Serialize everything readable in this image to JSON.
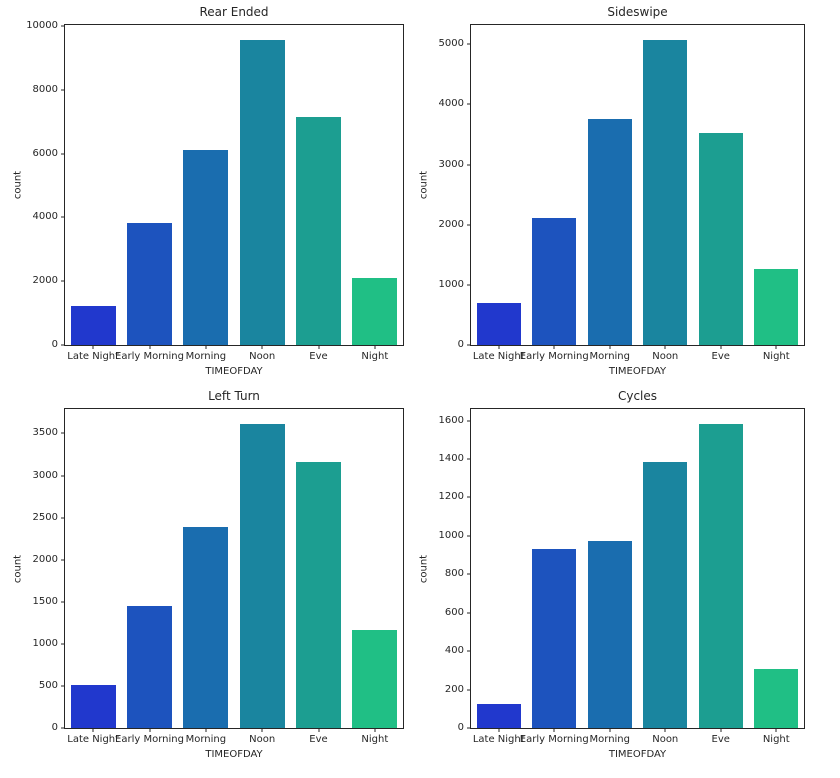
{
  "figure": {
    "background": "#ffffff",
    "spine_color": "#262626",
    "text_color": "#262626"
  },
  "palette": [
    "#2138cd",
    "#1d53be",
    "#1a6daf",
    "#1a859f",
    "#1c9e91",
    "#20bf85"
  ],
  "chart_data": [
    {
      "type": "bar",
      "title": "Rear Ended",
      "xlabel": "TIMEOFDAY",
      "ylabel": "count",
      "categories": [
        "Late Night",
        "Early Morning",
        "Morning",
        "Noon",
        "Eve",
        "Night"
      ],
      "values": [
        1220,
        3840,
        6120,
        9550,
        7150,
        2110
      ],
      "yticks": [
        0,
        2000,
        4000,
        6000,
        8000,
        10000
      ],
      "ylim": [
        0,
        10030
      ],
      "grid": false,
      "legend": "none",
      "bar_width_fraction": 0.8
    },
    {
      "type": "bar",
      "title": "Sideswipe",
      "xlabel": "TIMEOFDAY",
      "ylabel": "count",
      "categories": [
        "Late Night",
        "Early Morning",
        "Morning",
        "Noon",
        "Eve",
        "Night"
      ],
      "values": [
        700,
        2110,
        3760,
        5070,
        3530,
        1270
      ],
      "yticks": [
        0,
        1000,
        2000,
        3000,
        4000,
        5000
      ],
      "ylim": [
        0,
        5320
      ],
      "grid": false,
      "legend": "none",
      "bar_width_fraction": 0.8
    },
    {
      "type": "bar",
      "title": "Left Turn",
      "xlabel": "TIMEOFDAY",
      "ylabel": "count",
      "categories": [
        "Late Night",
        "Early Morning",
        "Morning",
        "Noon",
        "Eve",
        "Night"
      ],
      "values": [
        510,
        1450,
        2390,
        3610,
        3160,
        1165
      ],
      "yticks": [
        0,
        500,
        1000,
        1500,
        2000,
        2500,
        3000,
        3500
      ],
      "ylim": [
        0,
        3790
      ],
      "grid": false,
      "legend": "none",
      "bar_width_fraction": 0.8
    },
    {
      "type": "bar",
      "title": "Cycles",
      "xlabel": "TIMEOFDAY",
      "ylabel": "count",
      "categories": [
        "Late Night",
        "Early Morning",
        "Morning",
        "Noon",
        "Eve",
        "Night"
      ],
      "values": [
        125,
        930,
        975,
        1385,
        1580,
        305
      ],
      "yticks": [
        0,
        200,
        400,
        600,
        800,
        1000,
        1200,
        1400,
        1600
      ],
      "ylim": [
        0,
        1660
      ],
      "grid": false,
      "legend": "none",
      "bar_width_fraction": 0.8
    }
  ]
}
